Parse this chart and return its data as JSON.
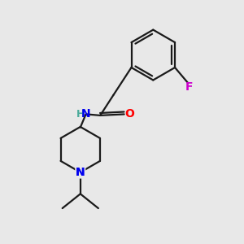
{
  "bg_color": "#e8e8e8",
  "bond_color": "#1a1a1a",
  "N_color": "#0000ee",
  "O_color": "#ff0000",
  "F_color": "#cc00cc",
  "NH_color": "#4aaa9a",
  "line_width": 1.6,
  "figsize": [
    3.0,
    3.0
  ],
  "dpi": 100,
  "xlim": [
    0,
    10
  ],
  "ylim": [
    0,
    10
  ]
}
